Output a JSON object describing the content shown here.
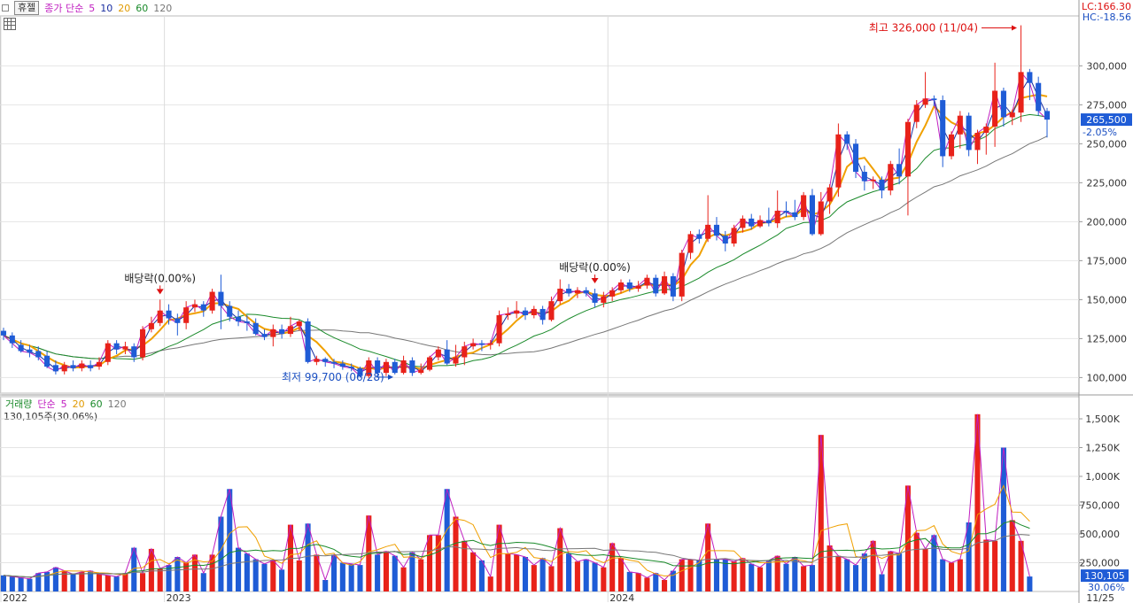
{
  "header": {
    "hold_label": "휴젤",
    "price_ma_label": "종가 단순",
    "ma_periods": [
      "5",
      "10",
      "20",
      "60",
      "120"
    ],
    "ma_colors": [
      "#c01ec0",
      "#1a2ea0",
      "#f0a000",
      "#1a8a2a",
      "#777777"
    ],
    "lc_label": "LC:166.30",
    "hc_label": "HC:-18.56"
  },
  "volume_header": {
    "volume_label": "거래량",
    "ma_label": "단순",
    "ma_periods": [
      "5",
      "20",
      "60",
      "120"
    ],
    "current_volume": "130,105주(30.06%)"
  },
  "colors": {
    "up": "#e8221a",
    "down": "#1f5cd6",
    "current_price_bg": "#1f5cd6"
  },
  "chart_data": [
    {
      "type": "candlestick",
      "title": "",
      "y_axis_ticks": [
        100000,
        125000,
        150000,
        175000,
        200000,
        225000,
        250000,
        275000,
        300000
      ],
      "y_tick_labels": [
        "100,000",
        "125,000",
        "150,000",
        "175,000",
        "200,000",
        "225,000",
        "250,000",
        "275,000",
        "300,000"
      ],
      "ylim": [
        90000,
        332000
      ],
      "x_tick_labels": [
        "2022",
        "2023",
        "2024",
        "11/25"
      ],
      "current_price": "265,500",
      "current_change": "-2.05%",
      "annotations": [
        {
          "text": "최고 326,000 (11/04)",
          "type": "high",
          "value": 326000
        },
        {
          "text": "최저 99,700 (06/28)",
          "type": "low",
          "value": 99700
        },
        {
          "text": "배당락(0.00%)",
          "type": "event",
          "value": 140000
        },
        {
          "text": "배당락(0.00%)",
          "type": "event",
          "value": 152000
        }
      ],
      "candles": [
        [
          130000,
          127000,
          132000,
          124000
        ],
        [
          127000,
          122000,
          129000,
          119000
        ],
        [
          121000,
          117000,
          124000,
          116000
        ],
        [
          118000,
          116000,
          121000,
          113000
        ],
        [
          117000,
          113000,
          120000,
          111000
        ],
        [
          114000,
          107000,
          117000,
          106000
        ],
        [
          108000,
          104000,
          111000,
          102000
        ],
        [
          104000,
          108000,
          110000,
          102000
        ],
        [
          108000,
          106000,
          111000,
          104000
        ],
        [
          106000,
          109000,
          111000,
          104000
        ],
        [
          108000,
          106000,
          111000,
          104000
        ],
        [
          107000,
          110000,
          113000,
          105000
        ],
        [
          110000,
          122000,
          124000,
          108000
        ],
        [
          122000,
          118000,
          124000,
          115000
        ],
        [
          118000,
          120000,
          123000,
          115000
        ],
        [
          120000,
          113000,
          122000,
          110000
        ],
        [
          113000,
          131000,
          133000,
          111000
        ],
        [
          131000,
          135000,
          139000,
          129000
        ],
        [
          135000,
          143000,
          150000,
          133000
        ],
        [
          143000,
          138000,
          147000,
          134000
        ],
        [
          138000,
          135000,
          141000,
          127000
        ],
        [
          135000,
          145000,
          149000,
          131000
        ],
        [
          145000,
          147000,
          150000,
          142000
        ],
        [
          147000,
          143000,
          149000,
          139000
        ],
        [
          143000,
          155000,
          157000,
          141000
        ],
        [
          155000,
          146000,
          166000,
          131000
        ],
        [
          146000,
          139000,
          149000,
          136000
        ],
        [
          139000,
          136000,
          143000,
          133000
        ],
        [
          136000,
          135000,
          140000,
          130000
        ],
        [
          135000,
          128000,
          138000,
          127000
        ],
        [
          128000,
          126000,
          131000,
          124000
        ],
        [
          126000,
          131000,
          134000,
          120000
        ],
        [
          131000,
          128000,
          134000,
          125000
        ],
        [
          128000,
          133000,
          139000,
          126000
        ],
        [
          133000,
          136000,
          137000,
          130000
        ],
        [
          136000,
          110000,
          138000,
          109000
        ],
        [
          110000,
          112000,
          114000,
          108000
        ],
        [
          112000,
          110000,
          113000,
          107000
        ],
        [
          110000,
          109000,
          112000,
          106000
        ],
        [
          109000,
          107000,
          111000,
          105000
        ],
        [
          107000,
          106000,
          109000,
          104000
        ],
        [
          106000,
          101000,
          107000,
          100000
        ],
        [
          101000,
          111000,
          113000,
          99700
        ],
        [
          111000,
          103000,
          113000,
          101000
        ],
        [
          103000,
          110000,
          112000,
          101000
        ],
        [
          110000,
          103000,
          112000,
          102000
        ],
        [
          103000,
          111000,
          114000,
          102000
        ],
        [
          111000,
          103000,
          113000,
          101000
        ],
        [
          103000,
          105000,
          109000,
          102000
        ],
        [
          105000,
          113000,
          114000,
          104000
        ],
        [
          113000,
          118000,
          120000,
          111000
        ],
        [
          118000,
          109000,
          124000,
          108000
        ],
        [
          109000,
          113000,
          121000,
          107000
        ],
        [
          113000,
          120000,
          123000,
          108000
        ],
        [
          120000,
          122000,
          125000,
          118000
        ],
        [
          122000,
          121000,
          124000,
          117000
        ],
        [
          121000,
          122000,
          124000,
          118000
        ],
        [
          122000,
          140000,
          143000,
          120000
        ],
        [
          140000,
          141000,
          145000,
          137000
        ],
        [
          141000,
          143000,
          149000,
          138000
        ],
        [
          143000,
          140000,
          145000,
          137000
        ],
        [
          140000,
          144000,
          146000,
          138000
        ],
        [
          144000,
          137000,
          146000,
          134000
        ],
        [
          137000,
          149000,
          152000,
          136000
        ],
        [
          149000,
          157000,
          163000,
          147000
        ],
        [
          157000,
          154000,
          160000,
          152000
        ],
        [
          154000,
          156000,
          158000,
          151000
        ],
        [
          156000,
          154000,
          158000,
          152000
        ],
        [
          154000,
          148000,
          157000,
          145000
        ],
        [
          148000,
          152000,
          155000,
          145000
        ],
        [
          152000,
          156000,
          158000,
          149000
        ],
        [
          156000,
          161000,
          163000,
          154000
        ],
        [
          161000,
          157000,
          163000,
          155000
        ],
        [
          157000,
          159000,
          162000,
          155000
        ],
        [
          159000,
          164000,
          166000,
          157000
        ],
        [
          164000,
          154000,
          166000,
          152000
        ],
        [
          154000,
          165000,
          168000,
          153000
        ],
        [
          165000,
          152000,
          167000,
          149000
        ],
        [
          152000,
          180000,
          182000,
          149000
        ],
        [
          180000,
          192000,
          194000,
          176000
        ],
        [
          192000,
          189000,
          195000,
          186000
        ],
        [
          189000,
          198000,
          217000,
          187000
        ],
        [
          198000,
          191000,
          203000,
          188000
        ],
        [
          191000,
          186000,
          194000,
          181000
        ],
        [
          186000,
          196000,
          198000,
          184000
        ],
        [
          196000,
          202000,
          204000,
          193000
        ],
        [
          202000,
          197000,
          205000,
          195000
        ],
        [
          197000,
          201000,
          204000,
          196000
        ],
        [
          201000,
          199000,
          209000,
          197000
        ],
        [
          199000,
          207000,
          220000,
          196000
        ],
        [
          207000,
          206000,
          213000,
          203000
        ],
        [
          206000,
          203000,
          214000,
          201000
        ],
        [
          203000,
          217000,
          219000,
          201000
        ],
        [
          217000,
          192000,
          221000,
          191000
        ],
        [
          192000,
          213000,
          219000,
          191000
        ],
        [
          213000,
          222000,
          224000,
          205000
        ],
        [
          222000,
          256000,
          263000,
          216000
        ],
        [
          256000,
          250000,
          258000,
          246000
        ],
        [
          250000,
          232000,
          253000,
          228000
        ],
        [
          232000,
          226000,
          236000,
          220000
        ],
        [
          226000,
          227000,
          229000,
          221000
        ],
        [
          227000,
          220000,
          229000,
          215000
        ],
        [
          220000,
          237000,
          239000,
          217000
        ],
        [
          237000,
          229000,
          247000,
          224000
        ],
        [
          229000,
          264000,
          266000,
          204000
        ],
        [
          264000,
          275000,
          278000,
          260000
        ],
        [
          275000,
          279000,
          296000,
          273000
        ],
        [
          279000,
          278000,
          281000,
          274000
        ],
        [
          278000,
          242000,
          281000,
          235000
        ],
        [
          242000,
          256000,
          258000,
          240000
        ],
        [
          256000,
          268000,
          271000,
          247000
        ],
        [
          268000,
          246000,
          270000,
          242000
        ],
        [
          246000,
          257000,
          259000,
          237000
        ],
        [
          257000,
          261000,
          263000,
          243000
        ],
        [
          261000,
          284000,
          302000,
          248000
        ],
        [
          284000,
          267000,
          286000,
          261000
        ],
        [
          267000,
          270000,
          272000,
          262000
        ],
        [
          270000,
          296000,
          326000,
          264000
        ],
        [
          296000,
          289000,
          298000,
          278000
        ],
        [
          289000,
          271000,
          293000,
          268000
        ],
        [
          271000,
          265500,
          273000,
          254000
        ]
      ],
      "ma_series": [
        {
          "name": "5"
        },
        {
          "name": "10"
        },
        {
          "name": "20"
        },
        {
          "name": "60"
        },
        {
          "name": "120"
        }
      ]
    },
    {
      "type": "bar",
      "title": "",
      "y_axis_ticks": [
        250000,
        500000,
        750000,
        1000000,
        1250000,
        1500000
      ],
      "y_tick_labels": [
        "250,000",
        "500,000",
        "750,000",
        "1,000K",
        "1,250K",
        "1,500K"
      ],
      "ylim": [
        0,
        1600000
      ],
      "current_volume_label": "130,105",
      "current_ratio_label": "30.06%",
      "values": [
        140000,
        130000,
        120000,
        110000,
        160000,
        170000,
        210000,
        180000,
        150000,
        170000,
        180000,
        150000,
        140000,
        130000,
        160000,
        380000,
        160000,
        370000,
        200000,
        230000,
        300000,
        250000,
        320000,
        160000,
        320000,
        650000,
        890000,
        380000,
        330000,
        280000,
        240000,
        270000,
        190000,
        580000,
        270000,
        590000,
        320000,
        100000,
        320000,
        250000,
        240000,
        230000,
        660000,
        320000,
        350000,
        310000,
        210000,
        340000,
        280000,
        490000,
        490000,
        890000,
        650000,
        440000,
        340000,
        270000,
        130000,
        580000,
        330000,
        320000,
        300000,
        230000,
        290000,
        220000,
        550000,
        330000,
        260000,
        280000,
        250000,
        210000,
        420000,
        290000,
        170000,
        160000,
        120000,
        160000,
        100000,
        180000,
        280000,
        280000,
        270000,
        590000,
        280000,
        280000,
        260000,
        290000,
        240000,
        210000,
        270000,
        310000,
        240000,
        300000,
        220000,
        230000,
        1360000,
        400000,
        310000,
        280000,
        230000,
        330000,
        440000,
        150000,
        350000,
        330000,
        920000,
        510000,
        370000,
        490000,
        280000,
        250000,
        280000,
        600000,
        1540000,
        450000,
        440000,
        1250000,
        620000,
        440000,
        130105
      ]
    }
  ]
}
